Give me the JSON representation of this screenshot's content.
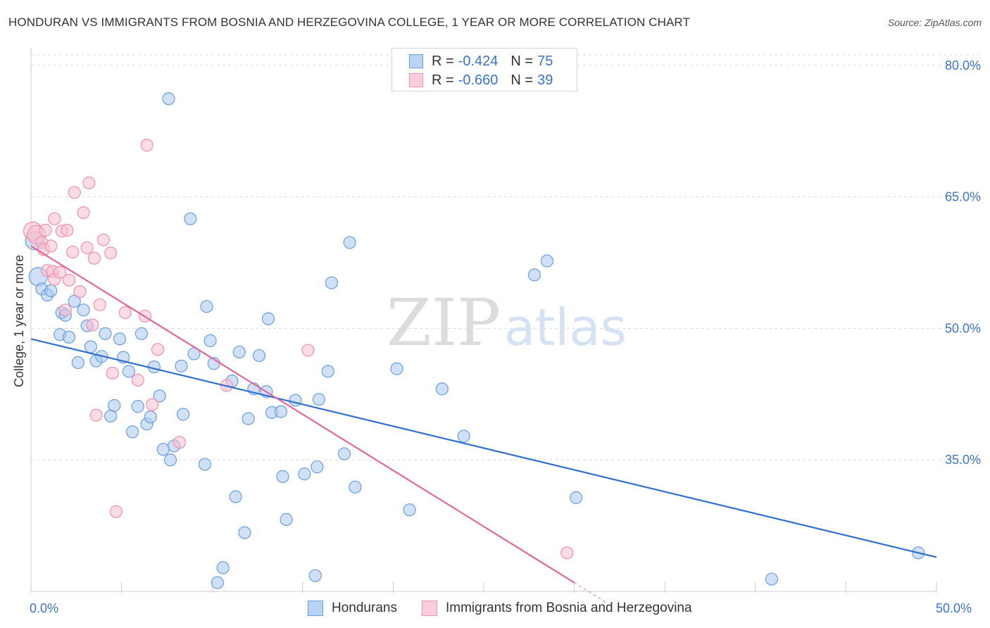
{
  "header": {
    "title": "HONDURAN VS IMMIGRANTS FROM BOSNIA AND HERZEGOVINA COLLEGE, 1 YEAR OR MORE CORRELATION CHART",
    "source": "Source: ZipAtlas.com"
  },
  "legend": {
    "series1": {
      "r_label": "R = ",
      "r_value": "-0.424",
      "n_label": "N = ",
      "n_value": "75"
    },
    "series2": {
      "r_label": "R = ",
      "r_value": "-0.660",
      "n_label": "N = ",
      "n_value": "39"
    },
    "bottom1": "Hondurans",
    "bottom2": "Immigrants from Bosnia and Herzegovina"
  },
  "watermark": {
    "zip": "ZIP",
    "atlas": "atlas"
  },
  "colors": {
    "blue_fill": "#a9c8f0",
    "blue_stroke": "#6a9ee0",
    "blue_line": "#2f6fcf",
    "pink_fill": "#f7bfd0",
    "pink_stroke": "#ee92b0",
    "pink_line": "#e0679a",
    "axis_text": "#3a73c8",
    "grid": "#dddddd"
  },
  "chart_data": {
    "type": "scatter",
    "title": "HONDURAN VS IMMIGRANTS FROM BOSNIA AND HERZEGOVINA COLLEGE, 1 YEAR OR MORE CORRELATION CHART",
    "xlabel": "",
    "ylabel": "College, 1 year or more",
    "xlim": [
      0,
      50
    ],
    "ylim": [
      20,
      82
    ],
    "x_tick_labels": [
      {
        "value": 0,
        "label": "0.0%"
      },
      {
        "value": 50,
        "label": "50.0%"
      }
    ],
    "y_tick_labels": [
      {
        "value": 35,
        "label": "35.0%"
      },
      {
        "value": 50,
        "label": "50.0%"
      },
      {
        "value": 65,
        "label": "65.0%"
      },
      {
        "value": 80,
        "label": "80.0%"
      }
    ],
    "x_minor_ticks": [
      5,
      10,
      15,
      20,
      25,
      30,
      35,
      40,
      45
    ],
    "series": [
      {
        "name": "Hondurans",
        "r": -0.424,
        "n": 75,
        "trend": {
          "x0": 0,
          "y0": 48.8,
          "x1": 50,
          "y1": 23.9
        },
        "points": [
          [
            0.2,
            60.0
          ],
          [
            0.4,
            55.9
          ],
          [
            0.6,
            54.5
          ],
          [
            0.9,
            53.8
          ],
          [
            1.1,
            54.3
          ],
          [
            1.6,
            49.3
          ],
          [
            1.7,
            51.8
          ],
          [
            1.9,
            51.5
          ],
          [
            2.1,
            49.0
          ],
          [
            2.4,
            53.1
          ],
          [
            2.6,
            46.1
          ],
          [
            2.9,
            52.1
          ],
          [
            3.1,
            50.3
          ],
          [
            3.3,
            47.9
          ],
          [
            3.6,
            46.3
          ],
          [
            3.9,
            46.8
          ],
          [
            4.1,
            49.4
          ],
          [
            4.4,
            40.0
          ],
          [
            4.6,
            41.2
          ],
          [
            4.9,
            48.8
          ],
          [
            5.1,
            46.7
          ],
          [
            5.4,
            45.1
          ],
          [
            5.6,
            38.2
          ],
          [
            5.9,
            41.1
          ],
          [
            6.1,
            49.4
          ],
          [
            6.4,
            39.1
          ],
          [
            6.6,
            39.9
          ],
          [
            6.8,
            45.6
          ],
          [
            7.1,
            42.3
          ],
          [
            7.3,
            36.2
          ],
          [
            7.6,
            76.2
          ],
          [
            7.7,
            35.0
          ],
          [
            7.9,
            36.6
          ],
          [
            8.3,
            45.7
          ],
          [
            8.4,
            40.2
          ],
          [
            8.8,
            62.5
          ],
          [
            9.0,
            47.1
          ],
          [
            9.6,
            34.5
          ],
          [
            9.7,
            52.5
          ],
          [
            9.9,
            48.6
          ],
          [
            10.1,
            46.0
          ],
          [
            10.3,
            21.0
          ],
          [
            10.6,
            22.7
          ],
          [
            11.1,
            44.0
          ],
          [
            11.3,
            30.8
          ],
          [
            11.5,
            47.3
          ],
          [
            11.8,
            26.7
          ],
          [
            12.0,
            39.7
          ],
          [
            12.3,
            43.1
          ],
          [
            12.6,
            46.9
          ],
          [
            13.0,
            42.8
          ],
          [
            13.1,
            51.1
          ],
          [
            13.3,
            40.4
          ],
          [
            13.8,
            40.5
          ],
          [
            13.9,
            33.1
          ],
          [
            14.1,
            28.2
          ],
          [
            14.6,
            41.8
          ],
          [
            15.1,
            33.4
          ],
          [
            15.7,
            21.8
          ],
          [
            15.8,
            34.2
          ],
          [
            15.9,
            41.9
          ],
          [
            16.4,
            45.1
          ],
          [
            16.6,
            55.2
          ],
          [
            17.3,
            35.7
          ],
          [
            17.6,
            59.8
          ],
          [
            17.9,
            31.9
          ],
          [
            20.2,
            45.4
          ],
          [
            20.9,
            29.3
          ],
          [
            22.7,
            43.1
          ],
          [
            23.9,
            37.7
          ],
          [
            27.8,
            56.1
          ],
          [
            28.5,
            57.7
          ],
          [
            30.1,
            30.7
          ],
          [
            40.9,
            21.4
          ],
          [
            49.0,
            24.4
          ]
        ]
      },
      {
        "name": "Immigrants from Bosnia and Herzegovina",
        "r": -0.66,
        "n": 39,
        "trend": {
          "x0": 0,
          "y0": 59.4,
          "x1": 30.0,
          "y1": 21.0
        },
        "points": [
          [
            0.1,
            61.1
          ],
          [
            0.3,
            60.7
          ],
          [
            0.6,
            59.8
          ],
          [
            0.7,
            59.0
          ],
          [
            0.8,
            61.2
          ],
          [
            0.9,
            56.6
          ],
          [
            1.1,
            59.4
          ],
          [
            1.2,
            56.5
          ],
          [
            1.3,
            55.6
          ],
          [
            1.3,
            62.5
          ],
          [
            1.6,
            56.4
          ],
          [
            1.7,
            61.1
          ],
          [
            1.9,
            52.1
          ],
          [
            2.0,
            61.2
          ],
          [
            2.1,
            55.5
          ],
          [
            2.3,
            58.7
          ],
          [
            2.4,
            65.5
          ],
          [
            2.7,
            54.2
          ],
          [
            2.9,
            63.2
          ],
          [
            3.1,
            59.2
          ],
          [
            3.2,
            66.6
          ],
          [
            3.4,
            50.4
          ],
          [
            3.5,
            58.0
          ],
          [
            3.6,
            40.1
          ],
          [
            3.8,
            52.7
          ],
          [
            4.0,
            60.1
          ],
          [
            4.4,
            58.6
          ],
          [
            4.5,
            44.9
          ],
          [
            4.7,
            29.1
          ],
          [
            5.2,
            51.8
          ],
          [
            5.9,
            44.1
          ],
          [
            6.3,
            51.4
          ],
          [
            6.4,
            70.9
          ],
          [
            6.7,
            41.3
          ],
          [
            7.0,
            47.6
          ],
          [
            8.2,
            37.0
          ],
          [
            10.8,
            43.5
          ],
          [
            15.3,
            47.5
          ],
          [
            29.6,
            24.4
          ]
        ]
      }
    ]
  }
}
